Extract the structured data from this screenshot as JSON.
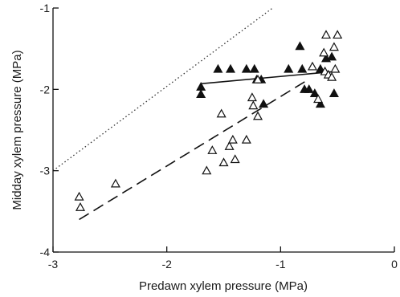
{
  "chart_data": {
    "type": "scatter",
    "title": "",
    "xlabel": "Predawn xylem pressure (MPa)",
    "ylabel": "Midday xylem pressure (MPa)",
    "xlim": [
      -3,
      0
    ],
    "ylim": [
      -4,
      -1
    ],
    "xticks": [
      -3,
      -2,
      -1,
      0
    ],
    "yticks": [
      -1,
      -2,
      -3,
      -4
    ],
    "xtick_labels": [
      "-3",
      "-2",
      "-1",
      "0"
    ],
    "ytick_labels": [
      "-1",
      "-2",
      "-3",
      "-4"
    ],
    "grid": false,
    "legend": "none",
    "series": [
      {
        "marker": "filled-triangle",
        "color": "#111111",
        "points": [
          {
            "x": -1.7,
            "y": -1.97
          },
          {
            "x": -1.7,
            "y": -2.06
          },
          {
            "x": -1.55,
            "y": -1.75
          },
          {
            "x": -1.44,
            "y": -1.75
          },
          {
            "x": -1.3,
            "y": -1.75
          },
          {
            "x": -1.23,
            "y": -1.75
          },
          {
            "x": -1.21,
            "y": -1.88
          },
          {
            "x": -1.17,
            "y": -1.88
          },
          {
            "x": -1.15,
            "y": -2.18
          },
          {
            "x": -0.93,
            "y": -1.75
          },
          {
            "x": -0.83,
            "y": -1.47
          },
          {
            "x": -0.81,
            "y": -1.75
          },
          {
            "x": -0.79,
            "y": -2.0
          },
          {
            "x": -0.75,
            "y": -2.0
          },
          {
            "x": -0.7,
            "y": -2.05
          },
          {
            "x": -0.65,
            "y": -2.18
          },
          {
            "x": -0.65,
            "y": -1.75
          },
          {
            "x": -0.6,
            "y": -1.62
          },
          {
            "x": -0.55,
            "y": -1.6
          },
          {
            "x": -0.53,
            "y": -2.05
          }
        ]
      },
      {
        "marker": "open-triangle",
        "color": "#111111",
        "points": [
          {
            "x": -2.77,
            "y": -3.32
          },
          {
            "x": -2.76,
            "y": -3.45
          },
          {
            "x": -2.45,
            "y": -3.16
          },
          {
            "x": -1.65,
            "y": -3.0
          },
          {
            "x": -1.6,
            "y": -2.75
          },
          {
            "x": -1.52,
            "y": -2.3
          },
          {
            "x": -1.5,
            "y": -2.9
          },
          {
            "x": -1.45,
            "y": -2.7
          },
          {
            "x": -1.42,
            "y": -2.62
          },
          {
            "x": -1.4,
            "y": -2.86
          },
          {
            "x": -1.3,
            "y": -2.62
          },
          {
            "x": -1.25,
            "y": -2.1
          },
          {
            "x": -1.24,
            "y": -2.2
          },
          {
            "x": -1.2,
            "y": -2.33
          },
          {
            "x": -1.2,
            "y": -1.88
          },
          {
            "x": -0.72,
            "y": -1.72
          },
          {
            "x": -0.67,
            "y": -2.12
          },
          {
            "x": -0.62,
            "y": -1.55
          },
          {
            "x": -0.61,
            "y": -1.78
          },
          {
            "x": -0.6,
            "y": -1.33
          },
          {
            "x": -0.58,
            "y": -1.82
          },
          {
            "x": -0.55,
            "y": -1.85
          },
          {
            "x": -0.53,
            "y": -1.48
          },
          {
            "x": -0.52,
            "y": -1.75
          },
          {
            "x": -0.5,
            "y": -1.33
          }
        ]
      }
    ],
    "lines": [
      {
        "style": "dotted",
        "color": "#333333",
        "points": [
          {
            "x": -3,
            "y": -3
          },
          {
            "x": -1.07,
            "y": -1
          }
        ]
      },
      {
        "style": "solid",
        "color": "#111111",
        "points": [
          {
            "x": -1.7,
            "y": -1.93
          },
          {
            "x": -0.52,
            "y": -1.78
          }
        ]
      },
      {
        "style": "dashed",
        "color": "#111111",
        "points": [
          {
            "x": -2.77,
            "y": -3.6
          },
          {
            "x": -0.78,
            "y": -1.9
          }
        ]
      }
    ]
  }
}
